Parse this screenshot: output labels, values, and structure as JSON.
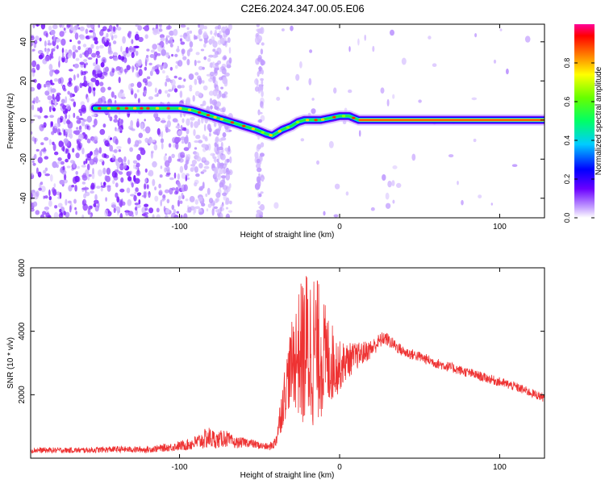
{
  "title": "C2E6.2024.347.00.05.E06",
  "chart_data": [
    {
      "type": "heatmap",
      "xlabel": "Height of straight line (km)",
      "ylabel": "Frequency (Hz)",
      "xlim": [
        -193,
        128
      ],
      "ylim": [
        -50,
        49
      ],
      "x_ticks": [
        -100,
        0,
        100
      ],
      "y_ticks": [
        -40,
        -20,
        0,
        20,
        40
      ],
      "ridge": {
        "x": [
          -153,
          -145,
          -137,
          -120,
          -110,
          -100,
          -92,
          -84,
          -76,
          -68,
          -60,
          -52,
          -46,
          -42,
          -36,
          -30,
          -26,
          -22,
          -18,
          -12,
          -6,
          0,
          6,
          12,
          128
        ],
        "frequency": [
          6,
          6,
          6,
          6,
          6,
          6,
          5,
          3,
          1,
          -1,
          -3,
          -5,
          -7,
          -8,
          -5,
          -3,
          -1,
          0,
          0,
          0,
          1,
          2,
          2,
          0,
          0
        ]
      },
      "colorbar": {
        "label": "Normalized spectral amplitude",
        "range": [
          0,
          1
        ],
        "ticks": [
          "0.0",
          "0.2",
          "0.4",
          "0.6",
          "0.8"
        ]
      }
    },
    {
      "type": "line",
      "xlabel": "Height of straight line (km)",
      "ylabel": "SNR (10 * v/v)",
      "xlim": [
        -193,
        128
      ],
      "ylim": [
        0,
        6000
      ],
      "x_ticks": [
        -100,
        0,
        100
      ],
      "y_ticks": [
        2000,
        4000,
        6000
      ],
      "color": "#ee3333",
      "envelope": {
        "x": [
          -193,
          -160,
          -140,
          -120,
          -105,
          -95,
          -88,
          -82,
          -76,
          -72,
          -66,
          -58,
          -50,
          -44,
          -40,
          -36,
          -32,
          -28,
          -24,
          -20,
          -16,
          -12,
          -8,
          -4,
          0,
          4,
          8,
          12,
          16,
          20,
          24,
          28,
          32,
          36,
          40,
          50,
          60,
          70,
          80,
          90,
          100,
          110,
          120,
          128
        ],
        "mean": [
          250,
          250,
          280,
          270,
          350,
          420,
          520,
          650,
          560,
          650,
          480,
          500,
          400,
          350,
          500,
          1600,
          2600,
          3200,
          3300,
          3400,
          3500,
          3300,
          3100,
          3000,
          2900,
          3050,
          3150,
          3250,
          3350,
          3450,
          3650,
          3800,
          3650,
          3500,
          3350,
          3200,
          3000,
          2850,
          2700,
          2550,
          2400,
          2250,
          2050,
          1900
        ],
        "amp": [
          90,
          90,
          100,
          100,
          130,
          180,
          250,
          360,
          250,
          300,
          180,
          150,
          120,
          110,
          200,
          700,
          1100,
          1600,
          2300,
          2700,
          2500,
          2100,
          1600,
          1200,
          800,
          600,
          500,
          400,
          350,
          300,
          250,
          220,
          200,
          190,
          180,
          170,
          160,
          160,
          150,
          150,
          150,
          150,
          140,
          140
        ]
      }
    }
  ]
}
